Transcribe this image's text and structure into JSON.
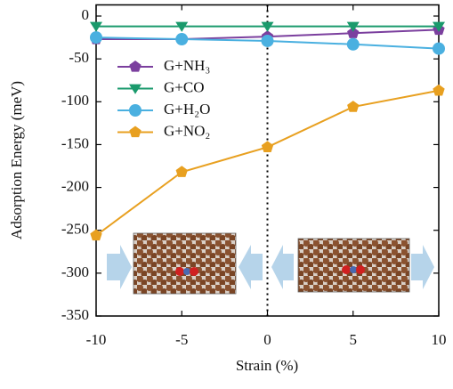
{
  "chart_data": {
    "type": "line",
    "xlabel": "Strain (%)",
    "ylabel": "Adsorption Energy (meV)",
    "x": [
      -10,
      -5,
      0,
      5,
      10
    ],
    "series": [
      {
        "name": "G+NH₃",
        "color": "#7b3f9e",
        "marker": "pentagon",
        "values": [
          -27,
          -27,
          -24,
          -20,
          -16
        ]
      },
      {
        "name": "G+CO",
        "color": "#1a9a6c",
        "marker": "triangle-down",
        "values": [
          -12,
          -12,
          -12,
          -12,
          -12
        ]
      },
      {
        "name": "G+H₂O",
        "color": "#4ab0e0",
        "marker": "circle",
        "values": [
          -25,
          -27,
          -29,
          -33,
          -38
        ]
      },
      {
        "name": "G+NO₂",
        "color": "#e8a020",
        "marker": "pentagon",
        "values": [
          -256,
          -182,
          -153,
          -106,
          -87
        ]
      }
    ],
    "xlim": [
      -10,
      10
    ],
    "xticks": [
      -10,
      -5,
      0,
      5,
      10
    ],
    "ylim": [
      -350,
      13
    ],
    "yticks": [
      0,
      -50,
      -100,
      -150,
      -200,
      -250,
      -300,
      -350
    ],
    "vline_x": 0
  }
}
